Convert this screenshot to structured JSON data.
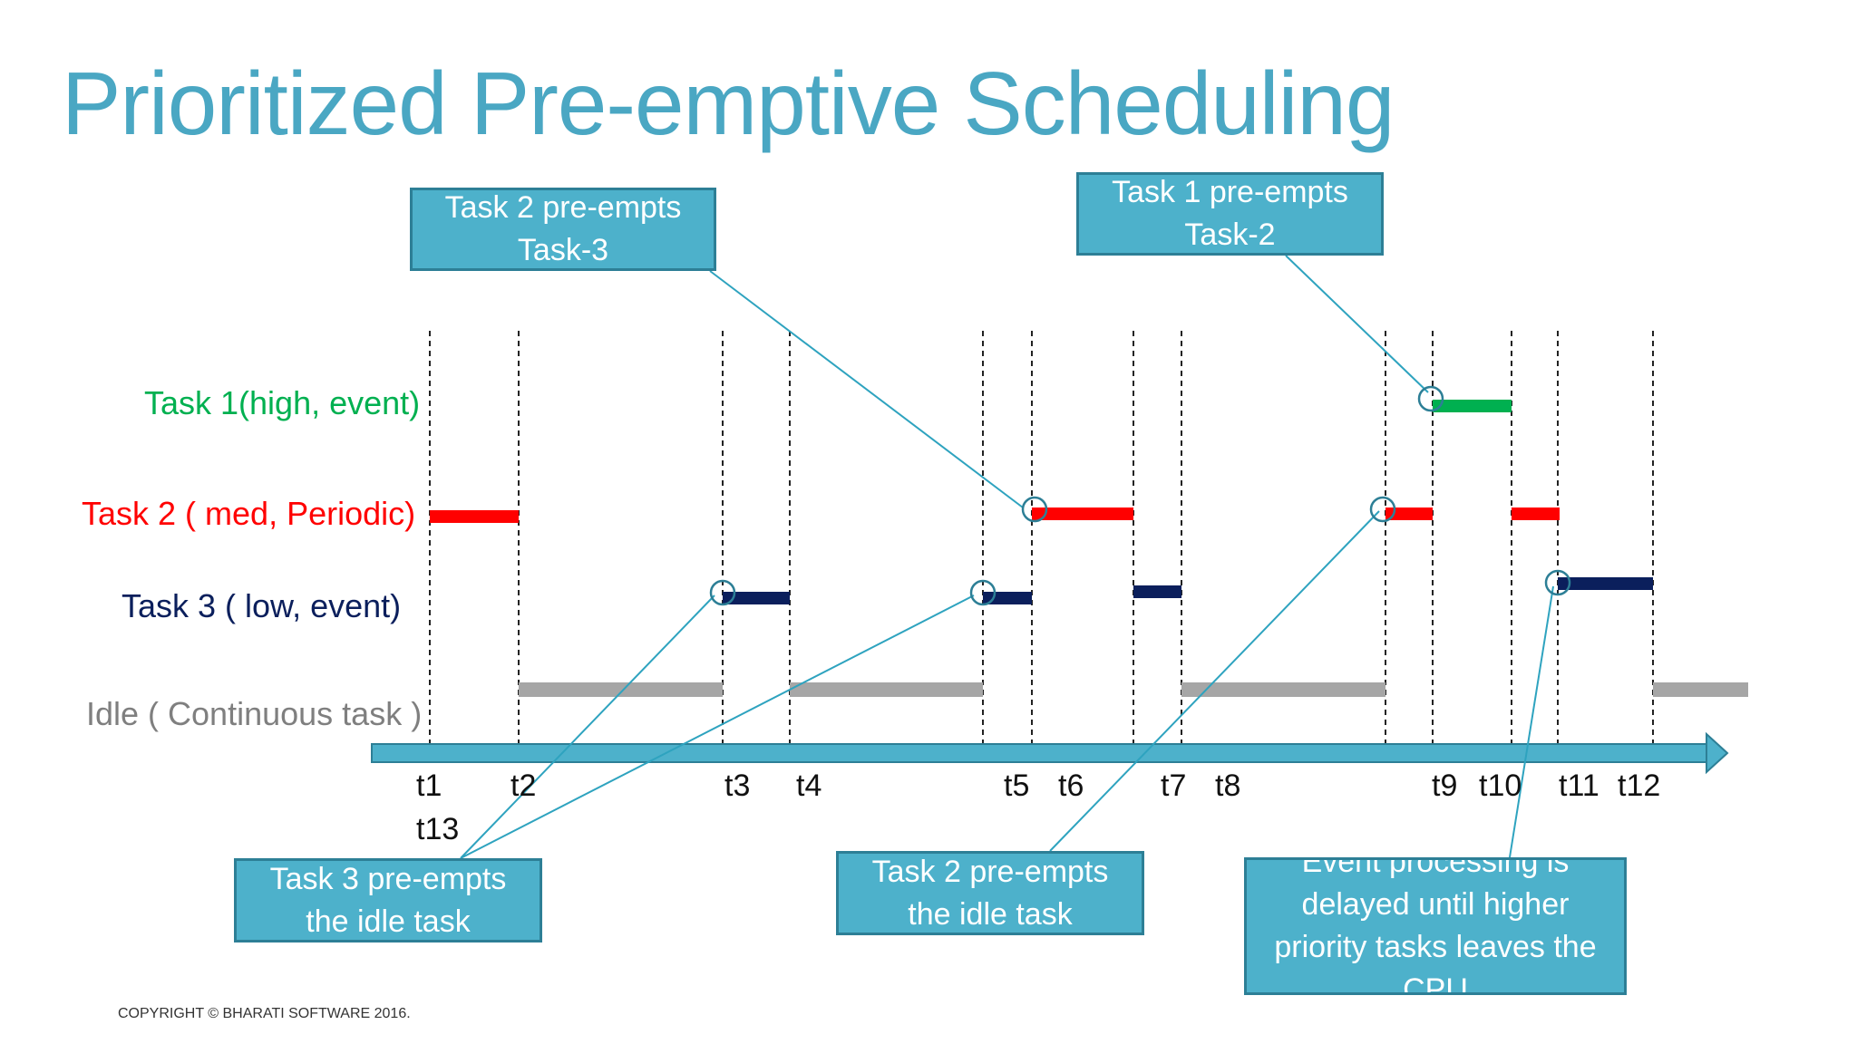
{
  "title": "Prioritized Pre-emptive Scheduling",
  "rows": {
    "task1": "Task 1(high, event)",
    "task2": "Task 2 ( med, Periodic)",
    "task3": "Task 3 ( low, event)",
    "idle": "Idle ( Continuous task )"
  },
  "colors": {
    "task1": "#00b050",
    "task2": "#ff0000",
    "task3": "#0b1f5c",
    "idle": "#a6a6a6",
    "axis": "#4db1cb",
    "title": "#4aa7c3"
  },
  "ticks": [
    "t1",
    "t2",
    "t3",
    "t4",
    "t5",
    "t6",
    "t7",
    "t8",
    "t9",
    "t10",
    "t11",
    "t12",
    "t13"
  ],
  "callouts": {
    "task2_preempts_task3": [
      "Task 2 pre-empts",
      "Task-3"
    ],
    "task1_preempts_task2": [
      "Task 1 pre-empts",
      "Task-2"
    ],
    "task3_preempts_idle": [
      "Task 3 pre-empts",
      "the idle task"
    ],
    "task2_preempts_idle": [
      "Task 2 pre-empts",
      "the idle task"
    ],
    "event_delayed": [
      "Event processing is",
      "delayed until higher",
      "priority tasks leaves the",
      "CPU"
    ]
  },
  "copyright": "COPYRIGHT © BHARATI SOFTWARE 2016."
}
